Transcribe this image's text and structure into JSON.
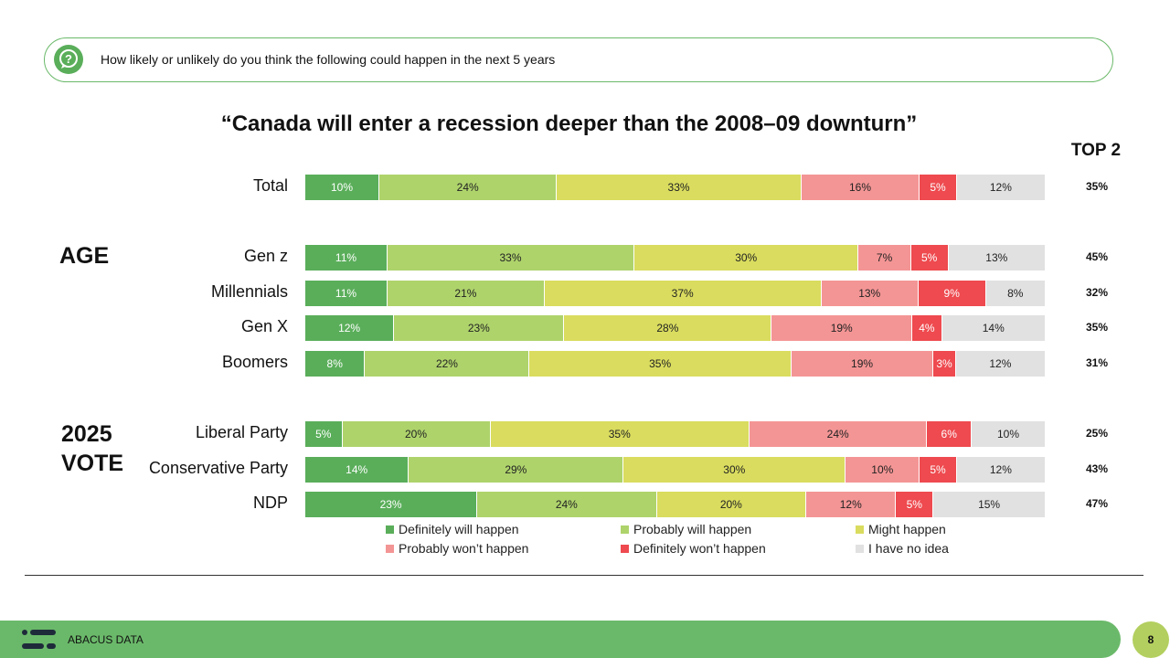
{
  "question": "How likely or unlikely do you think the following could happen in the next 5 years",
  "title": "“Canada will enter a recession deeper than the 2008–09 downturn”",
  "top2_header": "TOP 2",
  "groups": {
    "age": "AGE",
    "vote_line1": "2025",
    "vote_line2": "VOTE"
  },
  "footer": {
    "brand": "ABACUS DATA",
    "page": "8"
  },
  "colors": {
    "definitely_will": "#5aae5a",
    "probably_will": "#aed36b",
    "might": "#d9dc5e",
    "probably_wont": "#f49595",
    "definitely_wont": "#ee4a4f",
    "no_idea": "#e1e1e1",
    "accent_green": "#6ab96a"
  },
  "chart_data": {
    "type": "bar",
    "orientation": "horizontal",
    "stacked": true,
    "title": "“Canada will enter a recession deeper than the 2008–09 downturn”",
    "categories": [
      "Total",
      "Gen z",
      "Millennials",
      "Gen X",
      "Boomers",
      "Liberal Party",
      "Conservative Party",
      "NDP"
    ],
    "series": [
      {
        "name": "Definitely will happen",
        "values": [
          10,
          11,
          11,
          12,
          8,
          5,
          14,
          23
        ]
      },
      {
        "name": "Probably will happen",
        "values": [
          24,
          33,
          21,
          23,
          22,
          20,
          29,
          24
        ]
      },
      {
        "name": "Might happen",
        "values": [
          33,
          30,
          37,
          28,
          35,
          35,
          30,
          20
        ]
      },
      {
        "name": "Probably won’t happen",
        "values": [
          16,
          7,
          13,
          19,
          19,
          24,
          10,
          12
        ]
      },
      {
        "name": "Definitely won’t happen",
        "values": [
          5,
          5,
          9,
          4,
          3,
          6,
          5,
          5
        ]
      },
      {
        "name": "I have no idea",
        "values": [
          12,
          13,
          8,
          14,
          12,
          10,
          12,
          15
        ]
      }
    ],
    "top2": [
      "35%",
      "45%",
      "32%",
      "35%",
      "31%",
      "25%",
      "43%",
      "47%"
    ],
    "value_suffix": "%",
    "legend_position": "bottom"
  }
}
